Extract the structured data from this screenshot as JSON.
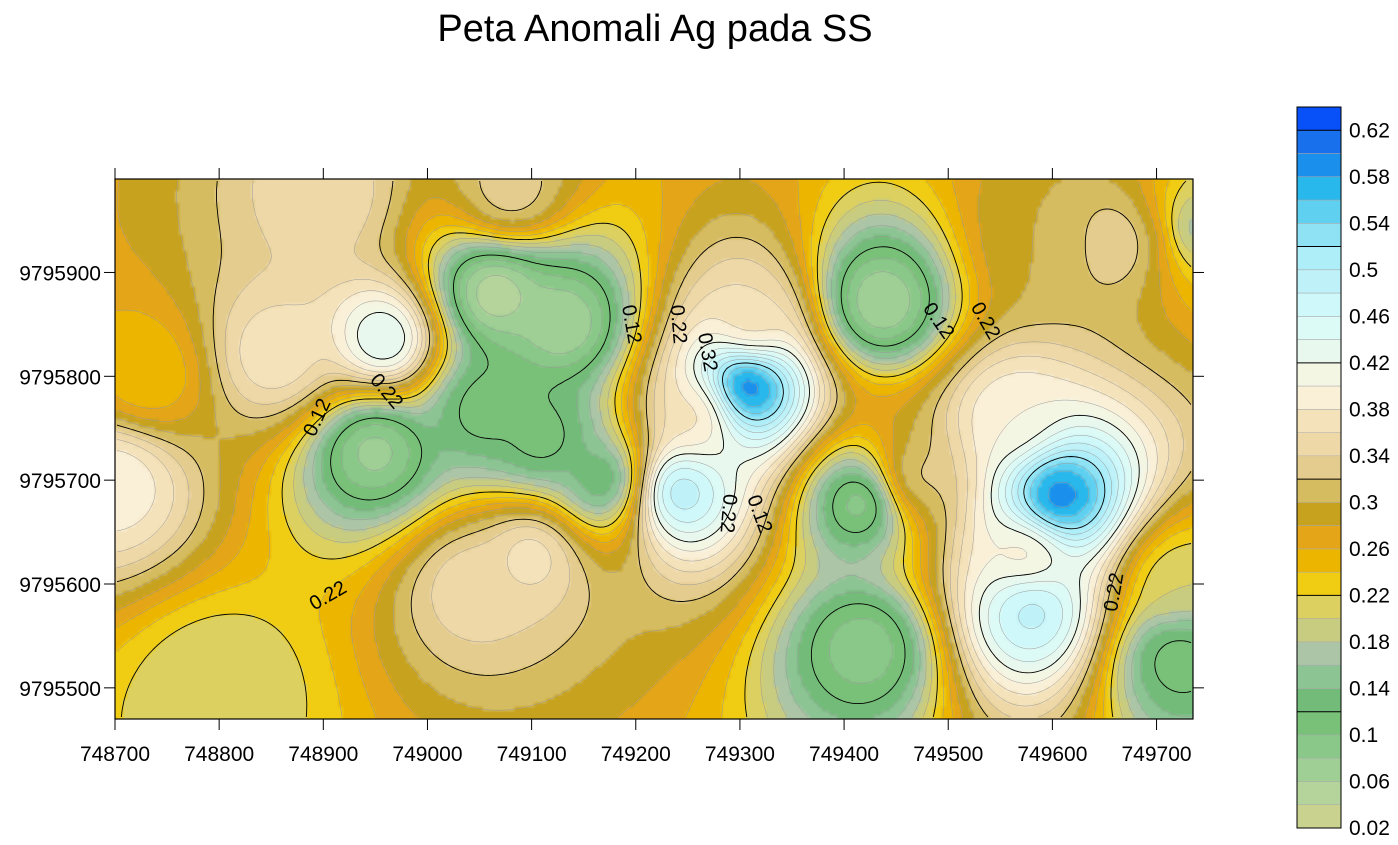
{
  "chart_data": {
    "type": "heatmap",
    "subtype": "filled-contour-map",
    "title": "Peta Anomali Ag pada SS",
    "xlabel": "",
    "ylabel": "",
    "xlim": [
      748700,
      749735
    ],
    "ylim": [
      9795470,
      9795990
    ],
    "x_ticks": [
      748700,
      748800,
      748900,
      749000,
      749100,
      749200,
      749300,
      749400,
      749500,
      749600,
      749700
    ],
    "y_ticks": [
      9795500,
      9795600,
      9795700,
      9795800,
      9795900
    ],
    "contour_interval": 0.02,
    "value_range": [
      0.02,
      0.64
    ],
    "contour_labels": [
      {
        "text": "0.22",
        "x": 748905,
        "y": 9795588,
        "angle": -30
      },
      {
        "text": "0.12",
        "x": 748895,
        "y": 9795760,
        "angle": -65
      },
      {
        "text": "0.22",
        "x": 748960,
        "y": 9795785,
        "angle": 50
      },
      {
        "text": "0.12",
        "x": 749195,
        "y": 9795850,
        "angle": 80
      },
      {
        "text": "0.22",
        "x": 749240,
        "y": 9795850,
        "angle": 85
      },
      {
        "text": "0.32",
        "x": 749268,
        "y": 9795823,
        "angle": 80
      },
      {
        "text": "0.22",
        "x": 749288,
        "y": 9795668,
        "angle": 95
      },
      {
        "text": "0.12",
        "x": 749318,
        "y": 9795667,
        "angle": 70
      },
      {
        "text": "0.12",
        "x": 749490,
        "y": 9795853,
        "angle": 55
      },
      {
        "text": "0.22",
        "x": 749535,
        "y": 9795853,
        "angle": 60
      },
      {
        "text": "0.22",
        "x": 749660,
        "y": 9795592,
        "angle": -80
      }
    ],
    "anomaly_peaks": [
      {
        "x": 749305,
        "y": 9795790,
        "value": 0.64
      },
      {
        "x": 749605,
        "y": 9795682,
        "value": 0.62
      },
      {
        "x": 749240,
        "y": 9795690,
        "value": 0.52
      },
      {
        "x": 748960,
        "y": 9795835,
        "value": 0.46
      },
      {
        "x": 749580,
        "y": 9795575,
        "value": 0.5
      },
      {
        "x": 748700,
        "y": 9795700,
        "value": 0.4
      },
      {
        "x": 749045,
        "y": 9795600,
        "value": 0.36
      },
      {
        "x": 748855,
        "y": 9795820,
        "value": 0.38
      },
      {
        "x": 749670,
        "y": 9795930,
        "value": 0.36
      },
      {
        "x": 749560,
        "y": 9795760,
        "value": 0.4
      },
      {
        "x": 749080,
        "y": 9795975,
        "value": 0.34
      },
      {
        "x": 748900,
        "y": 9795975,
        "value": 0.36
      },
      {
        "x": 749100,
        "y": 9795630,
        "value": 0.38
      },
      {
        "x": 749260,
        "y": 9795765,
        "value": 0.36
      },
      {
        "x": 749310,
        "y": 9795850,
        "value": 0.36
      },
      {
        "x": 749575,
        "y": 9795630,
        "value": 0.38
      },
      {
        "x": 749700,
        "y": 9795935,
        "value": 0.32
      },
      {
        "x": 749465,
        "y": 9795700,
        "value": 0.34
      },
      {
        "x": 749590,
        "y": 9795930,
        "value": 0.3
      },
      {
        "x": 749720,
        "y": 9795600,
        "value": 0.2
      },
      {
        "x": 748800,
        "y": 9795500,
        "value": 0.2
      }
    ],
    "anomaly_lows": [
      {
        "x": 749065,
        "y": 9795880,
        "value": 0.03
      },
      {
        "x": 749130,
        "y": 9795850,
        "value": 0.05
      },
      {
        "x": 749435,
        "y": 9795870,
        "value": 0.05
      },
      {
        "x": 748950,
        "y": 9795730,
        "value": 0.06
      },
      {
        "x": 749420,
        "y": 9795680,
        "value": 0.06
      },
      {
        "x": 749420,
        "y": 9795540,
        "value": 0.08
      },
      {
        "x": 749055,
        "y": 9795770,
        "value": 0.1
      },
      {
        "x": 749110,
        "y": 9795740,
        "value": 0.1
      },
      {
        "x": 749170,
        "y": 9795700,
        "value": 0.1
      },
      {
        "x": 749725,
        "y": 9795940,
        "value": 0.12
      },
      {
        "x": 749720,
        "y": 9795530,
        "value": 0.1
      },
      {
        "x": 748730,
        "y": 9795800,
        "value": 0.24
      }
    ],
    "background_value": 0.22,
    "colorbar": {
      "labels": [
        "0.02",
        "0.06",
        "0.1",
        "0.14",
        "0.18",
        "0.22",
        "0.26",
        "0.3",
        "0.34",
        "0.38",
        "0.42",
        "0.46",
        "0.5",
        "0.54",
        "0.58",
        "0.62"
      ],
      "levels": [
        0.02,
        0.04,
        0.06,
        0.08,
        0.1,
        0.12,
        0.14,
        0.16,
        0.18,
        0.2,
        0.22,
        0.24,
        0.26,
        0.28,
        0.3,
        0.32,
        0.34,
        0.36,
        0.38,
        0.4,
        0.42,
        0.44,
        0.46,
        0.48,
        0.5,
        0.52,
        0.54,
        0.56,
        0.58,
        0.6,
        0.62,
        0.64
      ],
      "colors": [
        "#c9d28e",
        "#b5d49c",
        "#9fcf95",
        "#8ac88a",
        "#79c078",
        "#72bb78",
        "#8cc494",
        "#adc5a7",
        "#c8cc80",
        "#dcd060",
        "#f0cd12",
        "#ecb600",
        "#e4a618",
        "#c7a21e",
        "#d6bc60",
        "#e4cc8e",
        "#eed8a8",
        "#f4e2ba",
        "#faf0d8",
        "#f4f6e4",
        "#e8f8ee",
        "#dcfaf6",
        "#cff8fa",
        "#bef2f8",
        "#aeeef8",
        "#8ee2f4",
        "#60d0f0",
        "#28b8ec",
        "#1a90ec",
        "#1870ec",
        "#0850f8"
      ]
    }
  }
}
